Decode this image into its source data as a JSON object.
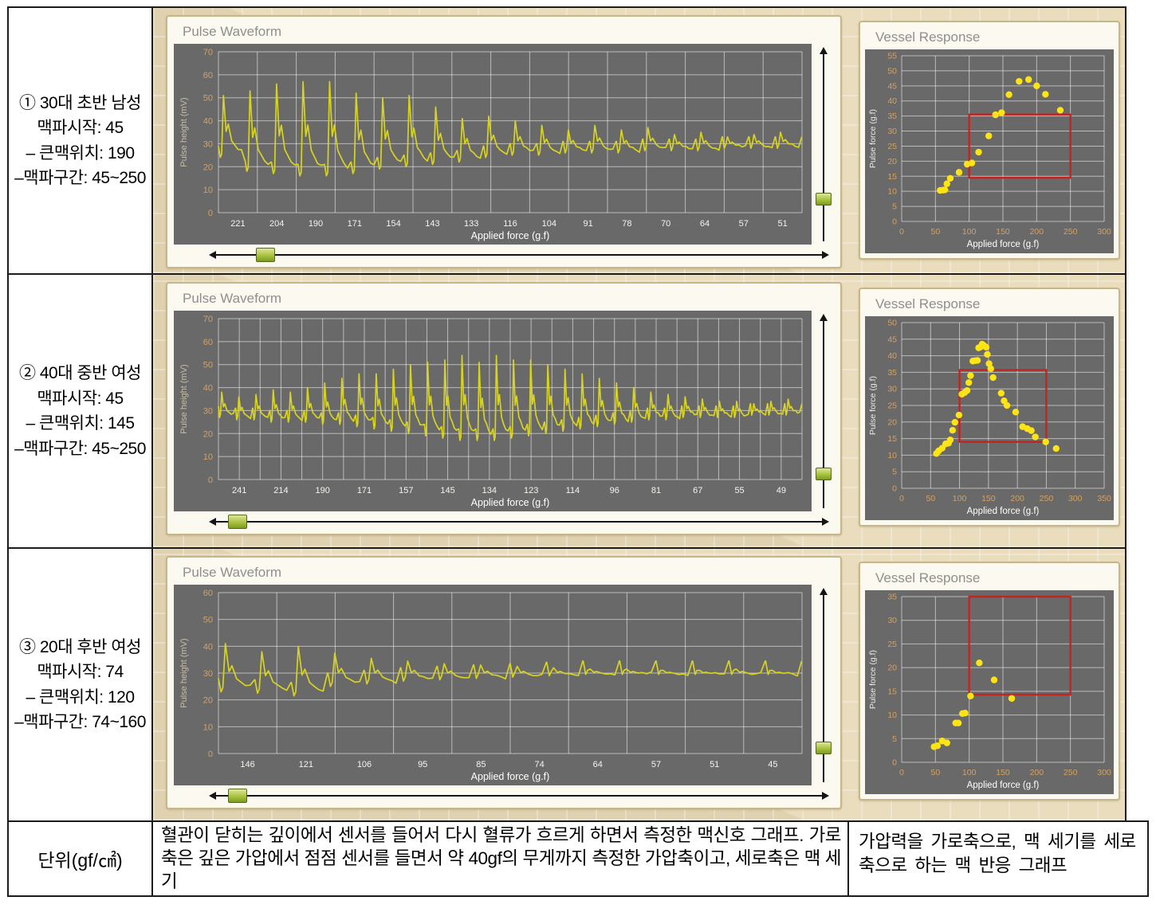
{
  "table": {
    "rows": [
      {
        "label_lines": [
          "①  30대 초반 남성",
          "맥파시작: 45",
          "– 큰맥위치: 190",
          "–맥파구간: 45~250"
        ]
      },
      {
        "label_lines": [
          "② 40대 중반 여성",
          "맥파시작: 45",
          "– 큰맥위치: 145",
          "–맥파구간: 45~250"
        ]
      },
      {
        "label_lines": [
          "③ 20대 후반 여성",
          "맥파시작: 74",
          "– 큰맥위치: 120",
          "–맥파구간: 74~160"
        ]
      }
    ],
    "footer": {
      "col1": "단위(gf/㎠)",
      "col2": "혈관이 닫히는 깊이에서 센서를 들어서 다시 혈류가 흐르게 하면서 측정한 맥신호 그래프. 가로축은 깊은 가압에서 점점 센서를 들면서 약 40gf의 무게까지 측정한 가압축이고, 세로축은 맥 세기",
      "col3": "가압력을 가로축으로, 맥 세기를 세로축으로 하는 맥 반응 그래프"
    }
  },
  "colors": {
    "plot_bg": "#696969",
    "grid": "rgba(255,255,255,0.55)",
    "wave": "#d8d41e",
    "dot": "#ffe415",
    "red_box": "#c42421",
    "tick_orange": "#d2a264",
    "tick_white": "#f4f4ee",
    "axis_title": "#ffffff",
    "ylabel_gray": "#c6bda6"
  },
  "chart_data": [
    {
      "waveform": {
        "type": "line",
        "title": "Pulse Waveform",
        "xlabel": "Applied force (g.f)",
        "ylabel": "Pulse height (mV)",
        "ylim": [
          0,
          70
        ],
        "yticks": [
          0,
          10,
          20,
          30,
          40,
          50,
          60,
          70
        ],
        "x_divisions": 15,
        "xticklabels": [
          "221",
          "204",
          "190",
          "171",
          "154",
          "143",
          "133",
          "116",
          "104",
          "91",
          "78",
          "70",
          "64",
          "57",
          "51"
        ],
        "pulse_peaks": [
          51,
          53,
          56,
          57,
          57,
          52,
          50,
          51,
          46,
          41,
          42,
          40,
          38,
          36,
          38,
          36,
          37,
          34,
          35,
          33,
          34,
          35
        ],
        "pulse_baselines": [
          24,
          18,
          17,
          16,
          16,
          17,
          19,
          20,
          21,
          22,
          24,
          25,
          25,
          26,
          26,
          26,
          27,
          27,
          27,
          28,
          28,
          28
        ]
      },
      "vessel": {
        "type": "scatter",
        "title": "Vessel Response",
        "xlabel": "Applied force (g.f)",
        "ylabel": "Pulse force (g.f)",
        "xlim": [
          0,
          300
        ],
        "ylim": [
          0,
          55
        ],
        "xticks": [
          0,
          50,
          100,
          150,
          200,
          250,
          300
        ],
        "yticks": [
          0,
          5,
          10,
          15,
          20,
          25,
          30,
          35,
          40,
          45,
          50,
          55
        ],
        "red_box": [
          100,
          14.5,
          250,
          35.5
        ],
        "points": [
          [
            57,
            10.3
          ],
          [
            61,
            10.4
          ],
          [
            64,
            10.5
          ],
          [
            67,
            12.5
          ],
          [
            72,
            14.3
          ],
          [
            85,
            16.3
          ],
          [
            97,
            19.0
          ],
          [
            104,
            19.4
          ],
          [
            114,
            23.0
          ],
          [
            129,
            28.4
          ],
          [
            139,
            35.4
          ],
          [
            148,
            36.1
          ],
          [
            159,
            42.1
          ],
          [
            174,
            46.5
          ],
          [
            188,
            47.1
          ],
          [
            200,
            45.0
          ],
          [
            213,
            42.2
          ],
          [
            235,
            36.9
          ]
        ]
      },
      "sliders": {
        "vertical": 0.78,
        "horizontal": 0.06
      }
    },
    {
      "waveform": {
        "type": "line",
        "title": "Pulse Waveform",
        "xlabel": "Applied force (g.f)",
        "ylabel": "Pulse height (mV)",
        "ylim": [
          0,
          70
        ],
        "yticks": [
          0,
          10,
          20,
          30,
          40,
          50,
          60,
          70
        ],
        "x_divisions": 28,
        "xticklabels": [
          "241",
          "214",
          "190",
          "171",
          "157",
          "145",
          "134",
          "123",
          "114",
          "96",
          "81",
          "67",
          "55",
          "49"
        ],
        "pulse_peaks": [
          38,
          36,
          37,
          39,
          38,
          40,
          42,
          44,
          46,
          46,
          48,
          50,
          51,
          52,
          54,
          51,
          54,
          52,
          52,
          50,
          48,
          46,
          44,
          42,
          40,
          38,
          37,
          36,
          35,
          34,
          34,
          33,
          34,
          35
        ],
        "pulse_baselines": [
          27,
          26,
          26,
          25,
          25,
          25,
          24,
          24,
          23,
          22,
          21,
          20,
          19,
          18,
          17,
          17,
          17,
          18,
          19,
          20,
          21,
          22,
          23,
          24,
          25,
          26,
          26,
          27,
          27,
          27,
          27,
          28,
          28,
          28
        ]
      },
      "vessel": {
        "type": "scatter",
        "title": "Vessel Response",
        "xlabel": "Applied force (g.f)",
        "ylabel": "Pulse force (g.f)",
        "xlim": [
          0,
          350
        ],
        "ylim": [
          0,
          50
        ],
        "xticks": [
          0,
          50,
          100,
          150,
          200,
          250,
          300,
          350
        ],
        "yticks": [
          0,
          5,
          10,
          15,
          20,
          25,
          30,
          35,
          40,
          45,
          50
        ],
        "red_box": [
          100,
          14.0,
          250,
          35.7
        ],
        "points": [
          [
            60,
            10.5
          ],
          [
            64,
            11.3
          ],
          [
            70,
            12.1
          ],
          [
            76,
            13.4
          ],
          [
            81,
            13.6
          ],
          [
            84,
            14.6
          ],
          [
            88,
            17.5
          ],
          [
            92,
            19.9
          ],
          [
            99,
            22.1
          ],
          [
            104,
            28.4
          ],
          [
            109,
            28.9
          ],
          [
            113,
            29.5
          ],
          [
            116,
            31.9
          ],
          [
            119,
            34.0
          ],
          [
            123,
            38.4
          ],
          [
            127,
            38.5
          ],
          [
            131,
            38.6
          ],
          [
            133,
            42.4
          ],
          [
            136,
            42.6
          ],
          [
            139,
            43.5
          ],
          [
            142,
            43.1
          ],
          [
            146,
            42.6
          ],
          [
            148,
            40.4
          ],
          [
            151,
            37.6
          ],
          [
            154,
            36.1
          ],
          [
            158,
            33.4
          ],
          [
            172,
            28.7
          ],
          [
            177,
            26.4
          ],
          [
            182,
            25.0
          ],
          [
            197,
            23.0
          ],
          [
            209,
            18.6
          ],
          [
            217,
            18.0
          ],
          [
            224,
            17.4
          ],
          [
            231,
            15.5
          ],
          [
            249,
            14.0
          ],
          [
            267,
            12.0
          ]
        ]
      },
      "sliders": {
        "vertical": 0.82,
        "horizontal": 0.015
      }
    },
    {
      "waveform": {
        "type": "line",
        "title": "Pulse Waveform",
        "xlabel": "Applied force (g.f)",
        "ylabel": "Pulse height (mV)",
        "ylim": [
          0,
          60
        ],
        "yticks": [
          0,
          10,
          20,
          30,
          40,
          50,
          60
        ],
        "x_divisions": 10,
        "xticklabels": [
          "146",
          "121",
          "106",
          "95",
          "85",
          "74",
          "64",
          "57",
          "51",
          "45"
        ],
        "pulse_peaks": [
          41,
          38,
          40,
          37.5,
          35.5,
          34.5,
          33.5,
          33,
          32.5,
          32,
          31.5,
          31.5,
          31,
          31,
          31.5,
          31
        ],
        "pulse_baselines": [
          23,
          22.5,
          21.5,
          25,
          26,
          27,
          27.5,
          28,
          28.5,
          29,
          29.5,
          29.5,
          29.5,
          29.5,
          29.5,
          29.5
        ]
      },
      "vessel": {
        "type": "scatter",
        "title": "Vessel Response",
        "xlabel": "Applied force (g.f)",
        "ylabel": "Pulse force (g.f)",
        "xlim": [
          0,
          300
        ],
        "ylim": [
          0,
          35
        ],
        "xticks": [
          0,
          50,
          100,
          150,
          200,
          250,
          300
        ],
        "yticks": [
          0,
          5,
          10,
          15,
          20,
          25,
          30,
          35
        ],
        "red_box": [
          100,
          14.3,
          250,
          35
        ],
        "points": [
          [
            48,
            3.3
          ],
          [
            53,
            3.5
          ],
          [
            60,
            4.5
          ],
          [
            67,
            4.1
          ],
          [
            80,
            8.3
          ],
          [
            84,
            8.3
          ],
          [
            90,
            10.3
          ],
          [
            94,
            10.4
          ],
          [
            102,
            14.0
          ],
          [
            115,
            21.0
          ],
          [
            137,
            17.4
          ],
          [
            163,
            13.5
          ]
        ]
      },
      "sliders": {
        "vertical": 0.82,
        "horizontal": 0.015
      }
    }
  ]
}
